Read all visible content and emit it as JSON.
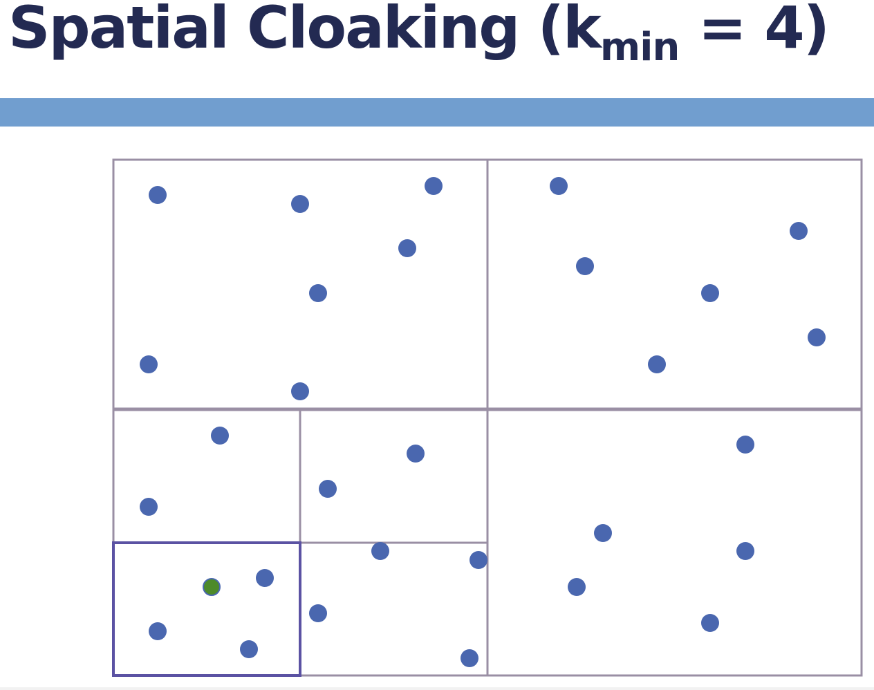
{
  "slide": {
    "title_main": "Spatial Cloaking (k",
    "title_sub": "min",
    "title_tail": " = 4)"
  },
  "colors": {
    "title": "#232a52",
    "band": "#719ecf",
    "grid_line": "#9a8fa4",
    "cloak_box": "#5b52a3",
    "user_dot": "#4a67af",
    "query_user_dot": "#4d8a2a"
  },
  "diagram": {
    "description_free": true,
    "cells": [
      "quadrant-top-left",
      "quadrant-top-right",
      "quadrant-bottom-right",
      "subcell-1",
      "subcell-2",
      "subcell-3",
      "subcell-4"
    ],
    "highlighted_cell": "subcell-3",
    "users_in_cloak": 4
  }
}
